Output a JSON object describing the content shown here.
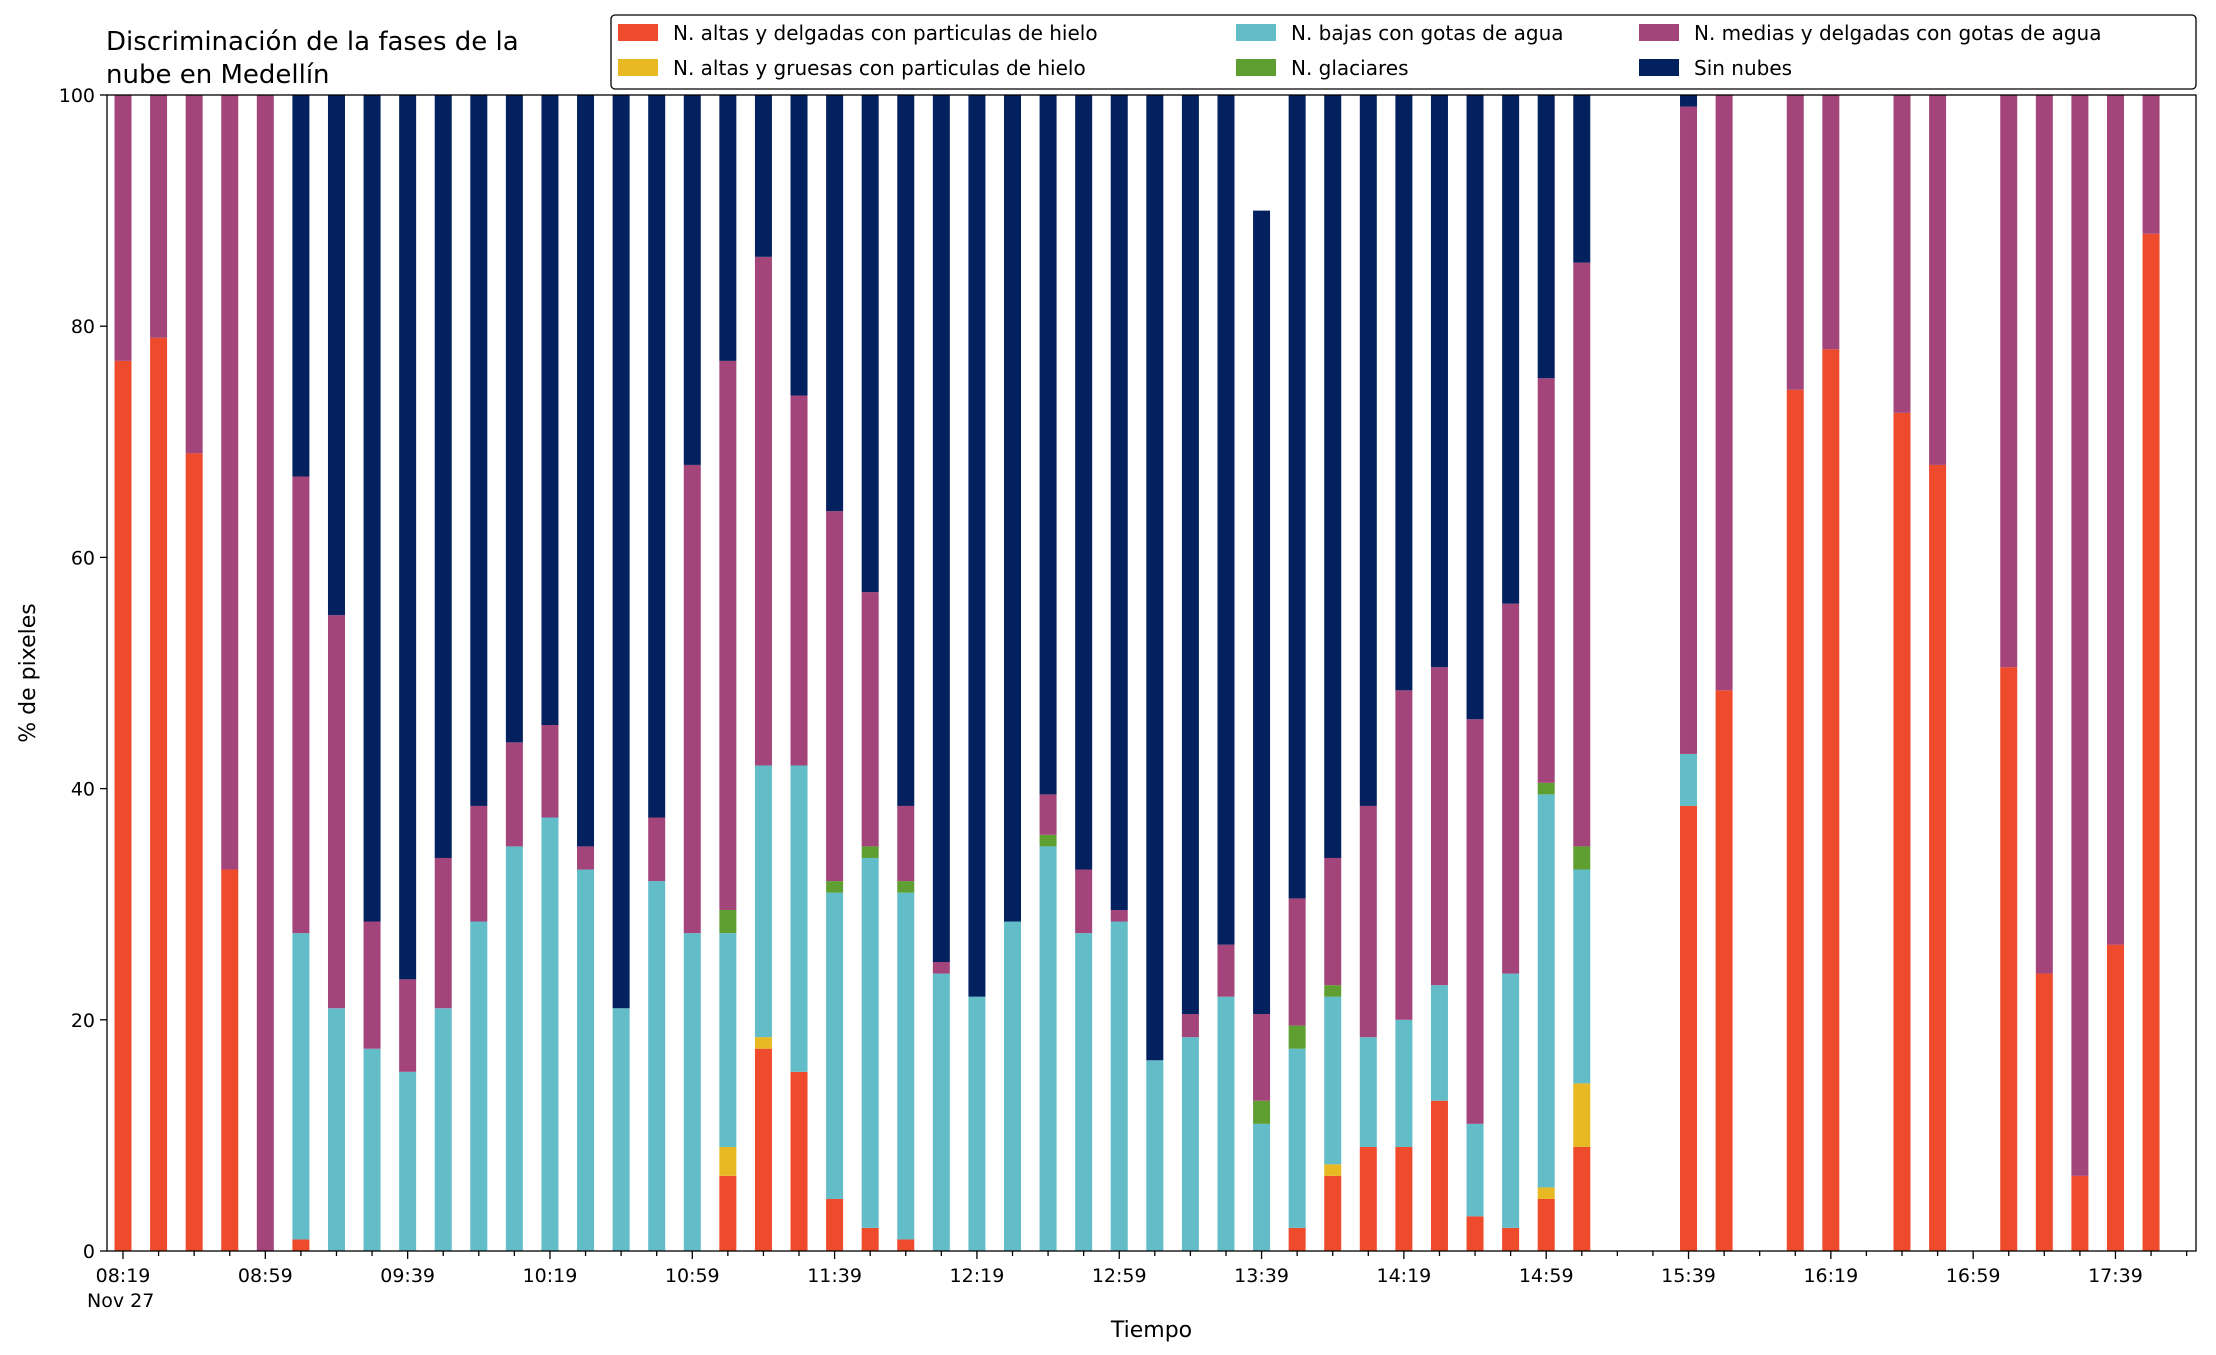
{
  "chart_data": {
    "type": "bar",
    "stacked": true,
    "title": "Discriminación de la fases de la nube en Medellín",
    "xlabel": "Tiempo",
    "ylabel": "% de pixeles",
    "ylim": [
      0,
      100
    ],
    "yticks": [
      0,
      20,
      40,
      60,
      80,
      100
    ],
    "x_start": "08:19",
    "x_end": "17:59",
    "x_step_minutes": 10,
    "xtick_labels": [
      "08:19",
      "08:59",
      "09:39",
      "10:19",
      "10:59",
      "11:39",
      "12:19",
      "12:59",
      "13:39",
      "14:19",
      "14:59",
      "15:39",
      "16:19",
      "16:59",
      "17:39"
    ],
    "xtick_sublabel": "Nov 27",
    "legend_position": "top-right",
    "grid": false,
    "series": [
      {
        "name": "N. altas y delgadas con particulas de hielo",
        "color": "#ee4a2c",
        "values": [
          77,
          79,
          69,
          33,
          0,
          1,
          0,
          0,
          0,
          0,
          0,
          0,
          0,
          0,
          0,
          0,
          0,
          6.5,
          17.5,
          15.5,
          4.5,
          2,
          1,
          0,
          0,
          0,
          0,
          0,
          0,
          0,
          0,
          0,
          0,
          2,
          6.5,
          9,
          9,
          13,
          3,
          2,
          4.5,
          9,
          null,
          null,
          38.5,
          48.5,
          null,
          74.5,
          78,
          null,
          72.5,
          68,
          null,
          50.5,
          24,
          6.5,
          26.5,
          88
        ]
      },
      {
        "name": "N. altas y gruesas con particulas de hielo",
        "color": "#e8b922",
        "values": [
          0,
          0,
          0,
          0,
          0,
          0,
          0,
          0,
          0,
          0,
          0,
          0,
          0,
          0,
          0,
          0,
          0,
          2.5,
          1,
          0,
          0,
          0,
          0,
          0,
          0,
          0,
          0,
          0,
          0,
          0,
          0,
          0,
          0,
          0,
          1,
          0,
          0,
          0,
          0,
          0,
          1,
          5.5,
          null,
          null,
          0,
          0,
          null,
          0,
          0,
          null,
          0,
          0,
          null,
          0,
          0,
          0,
          0,
          0
        ]
      },
      {
        "name": "N. bajas con gotas de agua",
        "color": "#63bdc8",
        "values": [
          0,
          0,
          0,
          0,
          0,
          26.5,
          21,
          17.5,
          15.5,
          21,
          28.5,
          35,
          37.5,
          33,
          21,
          32,
          27.5,
          18.5,
          23.5,
          26.5,
          26.5,
          32,
          30,
          24,
          22,
          28.5,
          35,
          27.5,
          28.5,
          16.5,
          18.5,
          22,
          11,
          15.5,
          14.5,
          9.5,
          11,
          10,
          8,
          22,
          34,
          18.5,
          null,
          null,
          4.5,
          0,
          null,
          0,
          0,
          null,
          0,
          0,
          null,
          0,
          0,
          0,
          0,
          0
        ]
      },
      {
        "name": "N. glaciares",
        "color": "#5f9f32",
        "values": [
          0,
          0,
          0,
          0,
          0,
          0,
          0,
          0,
          0,
          0,
          0,
          0,
          0,
          0,
          0,
          0,
          0,
          2,
          0,
          0,
          1,
          1,
          1,
          0,
          0,
          0,
          1,
          0,
          0,
          0,
          0,
          0,
          2,
          2,
          1,
          0,
          0,
          0,
          0,
          0,
          1,
          2,
          null,
          null,
          0,
          0,
          null,
          0,
          0,
          null,
          0,
          0,
          null,
          0,
          0,
          0,
          0,
          0
        ]
      },
      {
        "name": "N. medias y delgadas con gotas de agua",
        "color": "#a3457a",
        "values": [
          23,
          21,
          31,
          67,
          100,
          39.5,
          34,
          11,
          8,
          13,
          10,
          9,
          8,
          2,
          0,
          5.5,
          40.5,
          47.5,
          44,
          32,
          32,
          22,
          6.5,
          1,
          0,
          0,
          3.5,
          5.5,
          1,
          0,
          2,
          4.5,
          7.5,
          11,
          11,
          20,
          28.5,
          27.5,
          35,
          32,
          35,
          50.5,
          null,
          null,
          56,
          51.5,
          null,
          25.5,
          22,
          null,
          27.5,
          32,
          null,
          49.5,
          76,
          93.5,
          73.5,
          12
        ]
      },
      {
        "name": "Sin nubes",
        "color": "#03205f",
        "values": [
          0,
          0,
          0,
          0,
          0,
          33,
          45,
          71.5,
          76.5,
          66,
          61.5,
          56,
          55,
          65,
          79,
          62.5,
          32,
          23,
          14,
          26.5,
          36,
          43,
          61.5,
          75,
          78,
          71.5,
          60.5,
          67,
          70.5,
          83.5,
          79.5,
          73.5,
          69.5,
          69.5,
          66,
          61.5,
          51.5,
          49.5,
          54,
          44,
          25.5,
          14.5,
          null,
          null,
          1,
          0,
          null,
          0,
          0,
          null,
          0,
          0,
          null,
          0,
          0,
          0,
          0,
          0
        ]
      }
    ]
  }
}
